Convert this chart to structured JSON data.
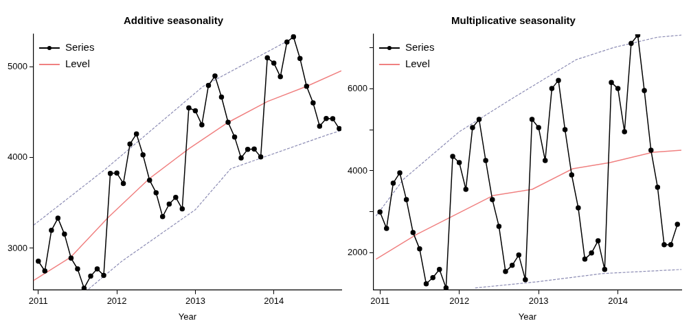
{
  "chart_data": [
    {
      "type": "line",
      "title": "Additive seasonality",
      "xlabel": "Year",
      "legend": "top left",
      "x": [
        2011,
        2011.083,
        2011.167,
        2011.25,
        2011.333,
        2011.417,
        2011.5,
        2011.583,
        2011.667,
        2011.75,
        2011.833,
        2011.917,
        2012,
        2012.083,
        2012.167,
        2012.25,
        2012.333,
        2012.417,
        2012.5,
        2012.583,
        2012.667,
        2012.75,
        2012.833,
        2012.917,
        2013,
        2013.083,
        2013.167,
        2013.25,
        2013.333,
        2013.417,
        2013.5,
        2013.583,
        2013.667,
        2013.75,
        2013.833,
        2013.917,
        2014,
        2014.083,
        2014.167,
        2014.25,
        2014.333,
        2014.417,
        2014.5,
        2014.583,
        2014.667,
        2014.75,
        2014.833
      ],
      "xlim": [
        2010.94,
        2014.86
      ],
      "xticks": [
        2011,
        2012,
        2013,
        2014
      ],
      "ylim": [
        2540,
        5360
      ],
      "yticks": [
        3000,
        4000,
        5000
      ],
      "series": [
        {
          "name": "Series",
          "color": "#000000",
          "marker": "circle",
          "line_style": "solid",
          "values": [
            2858,
            2750,
            3198,
            3332,
            3156,
            2892,
            2773,
            2560,
            2694,
            2773,
            2702,
            3826,
            3830,
            3715,
            4149,
            4262,
            4030,
            3751,
            3613,
            3349,
            3488,
            3562,
            3434,
            4549,
            4517,
            4362,
            4796,
            4900,
            4668,
            4390,
            4228,
            3996,
            4092,
            4095,
            4007,
            5100,
            5043,
            4892,
            5275,
            5332,
            5094,
            4787,
            4603,
            4347,
            4432,
            4430,
            4319
          ]
        },
        {
          "name": "Level",
          "color": "#f08080",
          "marker": "none",
          "line_style": "solid",
          "x": [
            2010.94,
            2011.41,
            2011.89,
            2012.41,
            2012.92,
            2013.42,
            2013.92,
            2014.42,
            2014.86
          ],
          "values": [
            2645,
            2900,
            3340,
            3766,
            4100,
            4390,
            4620,
            4787,
            4957
          ]
        },
        {
          "color": "#8c8cb4",
          "marker": "none",
          "line_style": "dashed",
          "x": [
            2010.94,
            2011.86,
            2013.1,
            2014.2,
            2014.27
          ],
          "values": [
            3255,
            3877,
            4787,
            5298,
            5350
          ]
        },
        {
          "color": "#8c8cb4",
          "marker": "none",
          "line_style": "dashed",
          "x": [
            2011.64,
            2012.06,
            2013.0,
            2013.45,
            2014.68,
            2014.86
          ],
          "values": [
            2550,
            2855,
            3426,
            3877,
            4251,
            4300
          ]
        }
      ]
    },
    {
      "type": "line",
      "title": "Multiplicative seasonality",
      "xlabel": "Year",
      "legend": "top left",
      "x": [
        2011,
        2011.083,
        2011.167,
        2011.25,
        2011.333,
        2011.417,
        2011.5,
        2011.583,
        2011.667,
        2011.75,
        2011.833,
        2011.917,
        2012,
        2012.083,
        2012.167,
        2012.25,
        2012.333,
        2012.417,
        2012.5,
        2012.583,
        2012.667,
        2012.75,
        2012.833,
        2012.917,
        2013,
        2013.083,
        2013.167,
        2013.25,
        2013.333,
        2013.417,
        2013.5,
        2013.583,
        2013.667,
        2013.75,
        2013.833,
        2013.917,
        2014,
        2014.083,
        2014.167,
        2014.25,
        2014.333,
        2014.417,
        2014.5,
        2014.583,
        2014.667,
        2014.75
      ],
      "xlim": [
        2010.92,
        2014.8
      ],
      "xticks": [
        2011,
        2012,
        2013,
        2014
      ],
      "ylim": [
        1100,
        7320
      ],
      "yticks": [
        2000,
        {
          "value": 3000,
          "label": null
        },
        4000,
        {
          "value": 5000,
          "label": null
        },
        6000,
        {
          "value": 7000,
          "label": null
        }
      ],
      "series": [
        {
          "name": "Series",
          "color": "#000000",
          "marker": "circle",
          "line_style": "solid",
          "values": [
            3000,
            2600,
            3700,
            3950,
            3300,
            2500,
            2100,
            1250,
            1400,
            1600,
            1150,
            4350,
            4200,
            3550,
            5050,
            5250,
            4250,
            3300,
            2650,
            1550,
            1700,
            1950,
            1350,
            5250,
            5050,
            4250,
            6000,
            6200,
            5000,
            3900,
            3100,
            1850,
            2000,
            2300,
            1600,
            6150,
            6000,
            4950,
            7100,
            7300,
            5950,
            4500,
            3600,
            2200,
            2200,
            2700
          ]
        },
        {
          "name": "Level",
          "color": "#f08080",
          "marker": "none",
          "line_style": "solid",
          "x": [
            2010.95,
            2011.46,
            2012.43,
            2012.92,
            2013.43,
            2013.9,
            2014.44,
            2014.8
          ],
          "values": [
            1850,
            2450,
            3400,
            3550,
            4050,
            4200,
            4450,
            4500
          ]
        },
        {
          "color": "#8c8cb4",
          "marker": "none",
          "line_style": "dashed",
          "x": [
            2010.95,
            2011.3,
            2012.0,
            2012.66,
            2013.47,
            2013.95,
            2014.5,
            2014.8
          ],
          "values": [
            2900,
            3800,
            4950,
            5750,
            6700,
            7000,
            7250,
            7300
          ]
        },
        {
          "color": "#8c8cb4",
          "marker": "none",
          "line_style": "dashed",
          "x": [
            2012.2,
            2012.98,
            2013.8,
            2014.8
          ],
          "values": [
            1150,
            1300,
            1500,
            1600
          ]
        }
      ]
    }
  ]
}
